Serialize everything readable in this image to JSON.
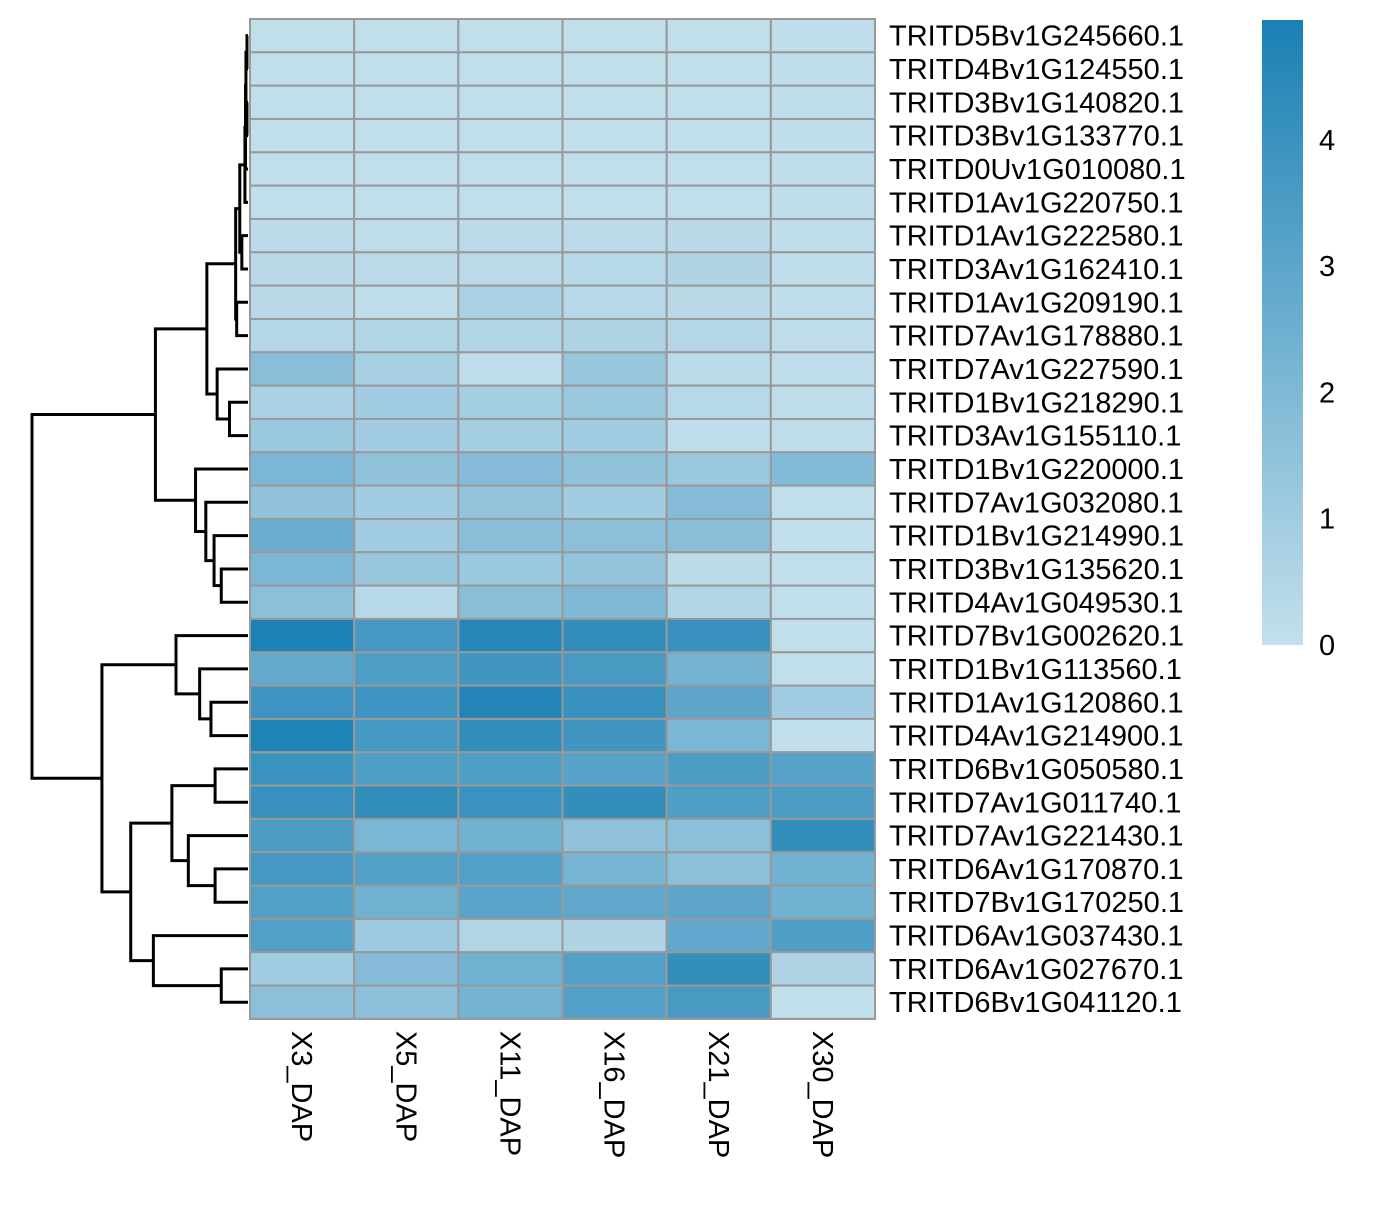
{
  "chart_data": {
    "type": "heatmap",
    "columns": [
      "X3_DAP",
      "X5_DAP",
      "X11_DAP",
      "X16_DAP",
      "X21_DAP",
      "X30_DAP"
    ],
    "rows": [
      "TRITD5Bv1G245660.1",
      "TRITD4Bv1G124550.1",
      "TRITD3Bv1G140820.1",
      "TRITD3Bv1G133770.1",
      "TRITD0Uv1G010080.1",
      "TRITD1Av1G220750.1",
      "TRITD1Av1G222580.1",
      "TRITD3Av1G162410.1",
      "TRITD1Av1G209190.1",
      "TRITD7Av1G178880.1",
      "TRITD7Av1G227590.1",
      "TRITD1Bv1G218290.1",
      "TRITD3Av1G155110.1",
      "TRITD1Bv1G220000.1",
      "TRITD7Av1G032080.1",
      "TRITD1Bv1G214990.1",
      "TRITD3Bv1G135620.1",
      "TRITD4Av1G049530.1",
      "TRITD7Bv1G002620.1",
      "TRITD1Bv1G113560.1",
      "TRITD1Av1G120860.1",
      "TRITD4Av1G214900.1",
      "TRITD6Bv1G050580.1",
      "TRITD7Av1G011740.1",
      "TRITD7Av1G221430.1",
      "TRITD6Av1G170870.1",
      "TRITD7Bv1G170250.1",
      "TRITD6Av1G037430.1",
      "TRITD6Av1G027670.1",
      "TRITD6Bv1G041120.1"
    ],
    "values": [
      [
        0.05,
        0.05,
        0.05,
        0.05,
        0.05,
        0.08
      ],
      [
        0.05,
        0.05,
        0.05,
        0.05,
        0.05,
        0.12
      ],
      [
        0.05,
        0.05,
        0.05,
        0.05,
        0.05,
        0.08
      ],
      [
        0.05,
        0.05,
        0.05,
        0.05,
        0.05,
        0.1
      ],
      [
        0.05,
        0.05,
        0.05,
        0.05,
        0.05,
        0.1
      ],
      [
        0.05,
        0.05,
        0.05,
        0.05,
        0.05,
        0.08
      ],
      [
        0.2,
        0.15,
        0.2,
        0.2,
        0.3,
        0.1
      ],
      [
        0.3,
        0.25,
        0.25,
        0.35,
        0.55,
        0.1
      ],
      [
        0.3,
        0.15,
        0.7,
        0.35,
        0.3,
        0.1
      ],
      [
        0.45,
        0.5,
        0.5,
        0.55,
        0.45,
        0.15
      ],
      [
        1.7,
        0.8,
        0.1,
        1.3,
        0.2,
        0.15
      ],
      [
        0.7,
        1.0,
        0.9,
        1.2,
        0.35,
        0.15
      ],
      [
        1.2,
        1.0,
        0.9,
        1.0,
        0.1,
        0.15
      ],
      [
        2.1,
        1.5,
        1.8,
        1.5,
        1.2,
        1.9
      ],
      [
        1.5,
        1.0,
        1.4,
        1.0,
        1.8,
        0.05
      ],
      [
        2.6,
        1.0,
        1.7,
        1.6,
        1.7,
        0.05
      ],
      [
        2.1,
        1.3,
        1.2,
        1.4,
        0.2,
        0.05
      ],
      [
        1.6,
        0.35,
        1.7,
        2.0,
        0.5,
        0.05
      ],
      [
        4.9,
        3.7,
        4.6,
        4.2,
        4.1,
        0.05
      ],
      [
        2.8,
        3.4,
        3.8,
        3.6,
        2.3,
        0.05
      ],
      [
        3.9,
        3.9,
        4.7,
        4.1,
        3.0,
        1.0
      ],
      [
        4.8,
        3.7,
        4.2,
        3.8,
        2.1,
        0.05
      ],
      [
        4.0,
        3.4,
        3.4,
        3.2,
        3.5,
        3.2
      ],
      [
        4.1,
        4.3,
        4.0,
        4.2,
        3.4,
        3.5
      ],
      [
        3.5,
        2.1,
        2.4,
        1.5,
        1.6,
        4.2
      ],
      [
        3.7,
        3.3,
        3.3,
        2.2,
        1.6,
        2.4
      ],
      [
        3.3,
        2.4,
        3.1,
        2.9,
        3.0,
        2.4
      ],
      [
        3.3,
        1.1,
        0.5,
        0.6,
        2.9,
        3.4
      ],
      [
        1.0,
        1.8,
        2.4,
        3.3,
        4.2,
        0.6
      ],
      [
        1.6,
        1.6,
        2.3,
        3.3,
        3.6,
        0.05
      ]
    ],
    "color_scale": {
      "min": 0,
      "max": 4.95,
      "low_color": "#c3dfec",
      "high_color": "#1a80b4",
      "ticks": [
        0,
        1,
        2,
        3,
        4
      ]
    },
    "cell_border_color": "#999999",
    "title": "",
    "xlabel": "",
    "ylabel": "",
    "row_dendrogram": {
      "merges": [
        [
          -1,
          -2,
          0.05
        ],
        [
          -3,
          -4,
          0.05
        ],
        [
          1,
          2,
          0.1
        ],
        [
          -5,
          3,
          0.12
        ],
        [
          -6,
          4,
          0.15
        ],
        [
          -7,
          -8,
          0.3
        ],
        [
          5,
          6,
          0.4
        ],
        [
          -9,
          -10,
          0.55
        ],
        [
          7,
          8,
          0.6
        ],
        [
          -12,
          -13,
          0.9
        ],
        [
          -11,
          10,
          1.5
        ],
        [
          9,
          11,
          2.0
        ],
        [
          -17,
          -18,
          1.3
        ],
        [
          -16,
          13,
          1.65
        ],
        [
          -15,
          14,
          2.05
        ],
        [
          -14,
          15,
          2.55
        ],
        [
          12,
          16,
          4.5
        ],
        [
          -21,
          -22,
          1.8
        ],
        [
          -20,
          18,
          2.35
        ],
        [
          -19,
          19,
          3.5
        ],
        [
          -23,
          -24,
          1.6
        ],
        [
          -26,
          -27,
          1.6
        ],
        [
          -25,
          22,
          2.9
        ],
        [
          21,
          23,
          3.7
        ],
        [
          -29,
          -30,
          1.3
        ],
        [
          -28,
          25,
          4.6
        ],
        [
          24,
          26,
          5.7
        ],
        [
          20,
          27,
          7.1
        ],
        [
          17,
          28,
          10.5
        ]
      ]
    }
  }
}
